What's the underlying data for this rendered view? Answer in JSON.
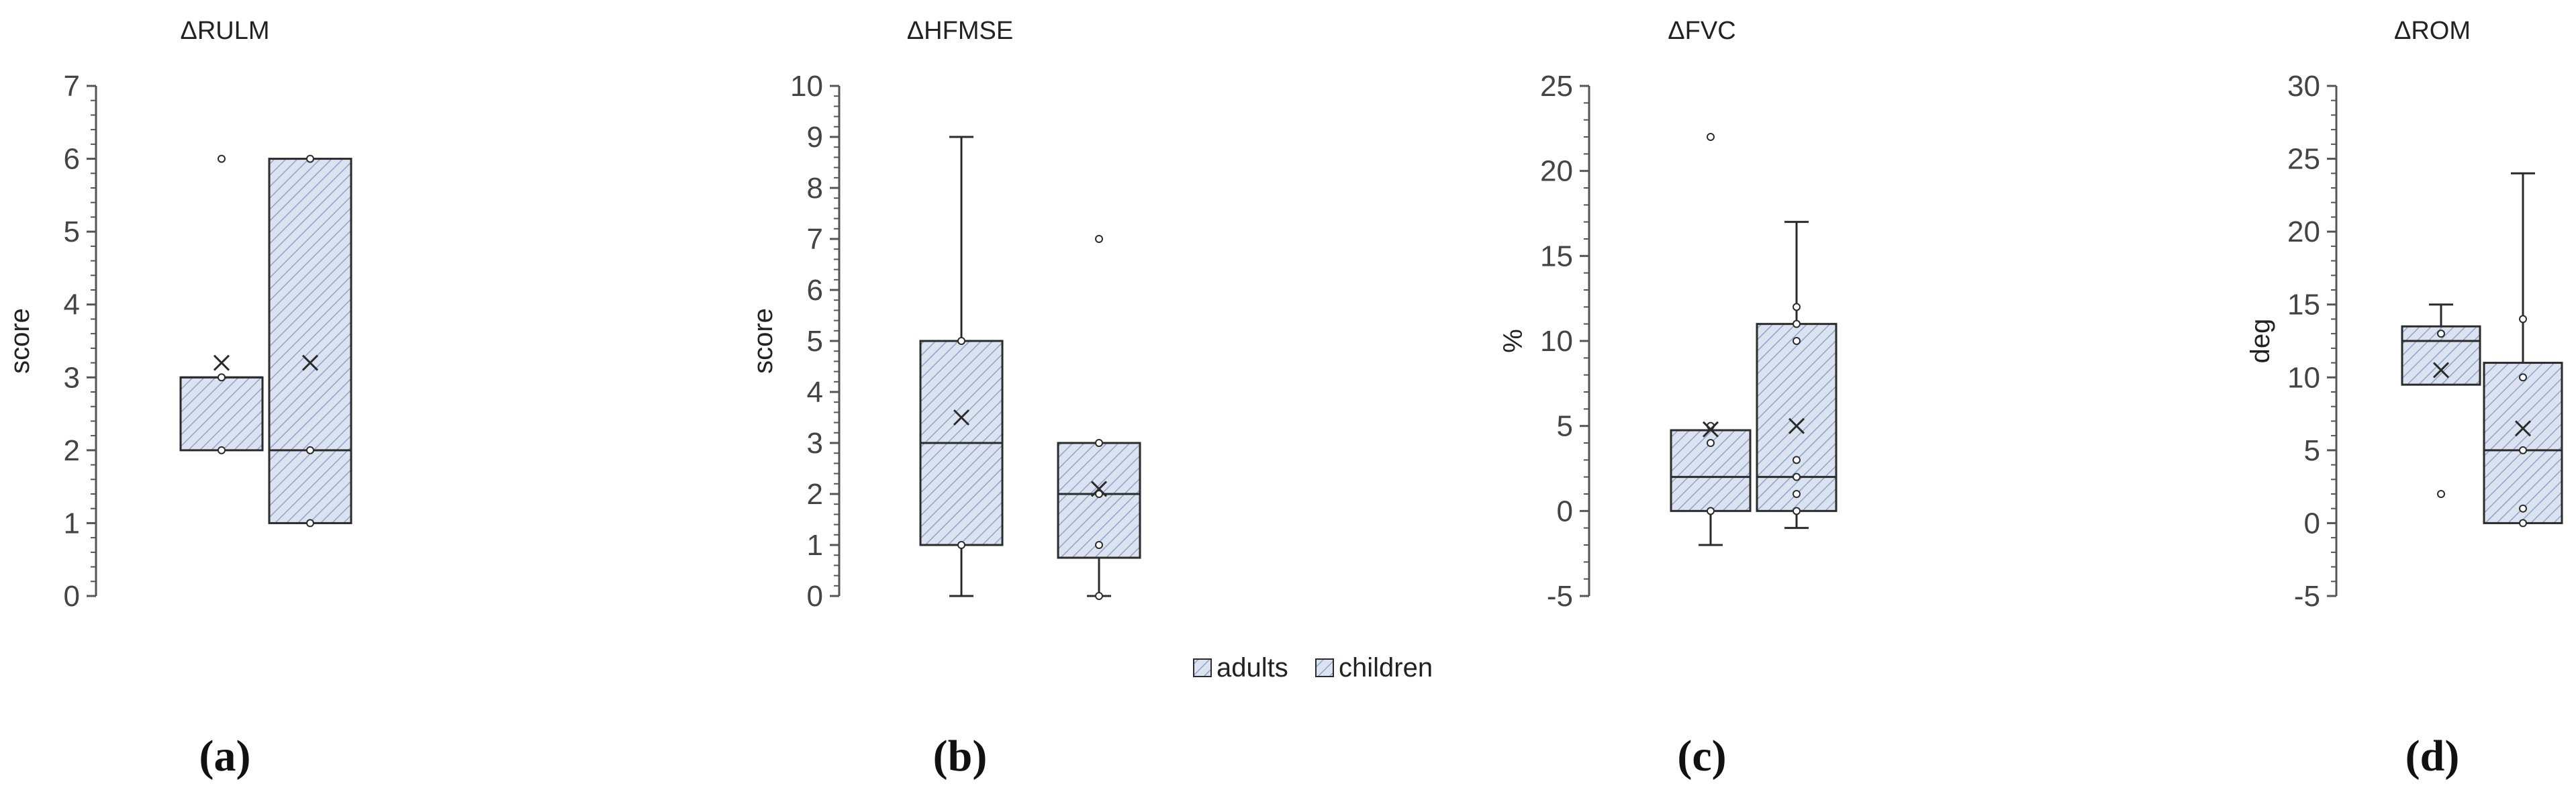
{
  "legend": {
    "items": [
      {
        "label": "adults",
        "fill": "#dbe3f0",
        "hatch": "#8ea4c8"
      },
      {
        "label": "children",
        "fill": "#dbe3f0",
        "hatch": "#8ea4c8"
      }
    ]
  },
  "colors": {
    "box_fill": "#dbe3f0",
    "hatch": "#8ea4c8",
    "stroke": "#2b2b2b",
    "axis": "#555555"
  },
  "chart_data": [
    {
      "type": "box",
      "panel_label": "(a)",
      "title": "ΔRULM",
      "ylabel": "score",
      "ylim": [
        0,
        7
      ],
      "yticks": [
        0,
        1,
        2,
        3,
        4,
        5,
        6,
        7
      ],
      "yticks_text": [
        "0",
        "1",
        "2",
        "3",
        "4",
        "5",
        "6",
        "7"
      ],
      "series": [
        {
          "name": "adults",
          "q1": 2,
          "median": 3,
          "q3": 3,
          "whisker_low": 2,
          "whisker_high": 3,
          "mean": 3.2,
          "points": [
            2,
            3
          ],
          "outliers": [
            6
          ]
        },
        {
          "name": "children",
          "q1": 1,
          "median": 2,
          "q3": 6,
          "whisker_low": 1,
          "whisker_high": 6,
          "mean": 3.2,
          "points": [
            1,
            2,
            6
          ],
          "outliers": []
        }
      ]
    },
    {
      "type": "box",
      "panel_label": "(b)",
      "title": "ΔHFMSE",
      "ylabel": "score",
      "ylim": [
        0,
        10
      ],
      "yticks": [
        0,
        1,
        2,
        3,
        4,
        5,
        6,
        7,
        8,
        9,
        10
      ],
      "yticks_text": [
        "0",
        "1",
        "2",
        "3",
        "4",
        "5",
        "6",
        "7",
        "8",
        "9",
        "10"
      ],
      "series": [
        {
          "name": "adults",
          "q1": 1,
          "median": 3,
          "q3": 5,
          "whisker_low": 0,
          "whisker_high": 9,
          "mean": 3.5,
          "points": [
            1,
            5
          ],
          "outliers": []
        },
        {
          "name": "children",
          "q1": 0.75,
          "median": 2,
          "q3": 3,
          "whisker_low": 0,
          "whisker_high": 3,
          "mean": 2.1,
          "points": [
            0,
            1,
            2,
            3
          ],
          "outliers": [
            7
          ]
        }
      ]
    },
    {
      "type": "box",
      "panel_label": "(c)",
      "title": "ΔFVC",
      "ylabel": "%",
      "ylim": [
        -5,
        25
      ],
      "yticks": [
        -5,
        0,
        5,
        10,
        15,
        20,
        25
      ],
      "yticks_text": [
        "-5",
        "0",
        "5",
        "10",
        "15",
        "20",
        "25"
      ],
      "series": [
        {
          "name": "adults",
          "q1": 0,
          "median": 2,
          "q3": 4.75,
          "whisker_low": -2,
          "whisker_high": 4.75,
          "mean": 4.8,
          "points": [
            0,
            4,
            5
          ],
          "outliers": [
            22
          ]
        },
        {
          "name": "children",
          "q1": 0,
          "median": 2,
          "q3": 11,
          "whisker_low": -1,
          "whisker_high": 17,
          "mean": 5,
          "points": [
            0,
            1,
            2,
            3,
            10,
            11,
            12
          ],
          "outliers": []
        }
      ]
    },
    {
      "type": "box",
      "panel_label": "(d)",
      "title": "ΔROM",
      "ylabel": "deg",
      "ylim": [
        -5,
        30
      ],
      "yticks": [
        -5,
        0,
        5,
        10,
        15,
        20,
        25,
        30
      ],
      "yticks_text": [
        "-5",
        "0",
        "5",
        "10",
        "15",
        "20",
        "25",
        "30"
      ],
      "series": [
        {
          "name": "adults",
          "q1": 9.5,
          "median": 12.5,
          "q3": 13.5,
          "whisker_low": 9.5,
          "whisker_high": 15,
          "mean": 10.5,
          "points": [
            13
          ],
          "outliers": [
            2
          ]
        },
        {
          "name": "children",
          "q1": 0,
          "median": 5,
          "q3": 11,
          "whisker_low": 0,
          "whisker_high": 24,
          "mean": 6.5,
          "points": [
            0,
            1,
            5,
            10,
            14
          ],
          "outliers": []
        }
      ]
    }
  ]
}
